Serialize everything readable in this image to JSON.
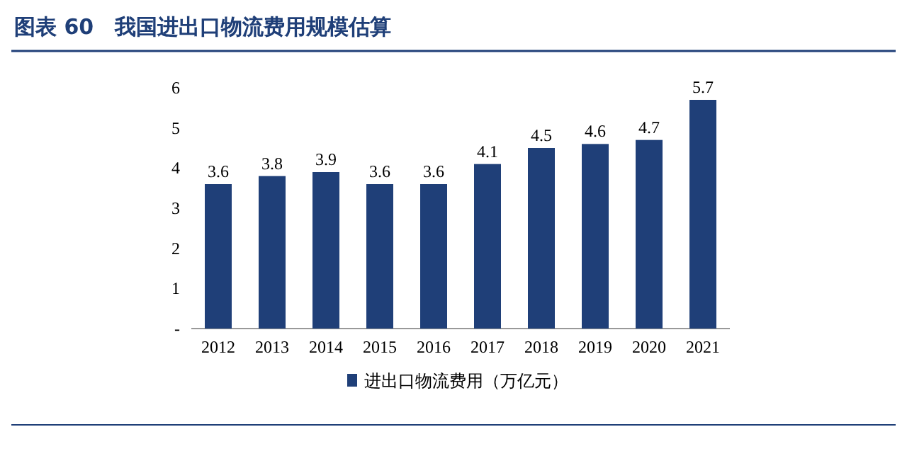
{
  "chart_data": {
    "type": "bar",
    "title": "图表 60　我国进出口物流费用规模估算",
    "categories": [
      "2012",
      "2013",
      "2014",
      "2015",
      "2016",
      "2017",
      "2018",
      "2019",
      "2020",
      "2021"
    ],
    "series": [
      {
        "name": "进出口物流费用（万亿元）",
        "color": "#1f3f78",
        "values": [
          3.6,
          3.8,
          3.9,
          3.6,
          3.6,
          4.1,
          4.5,
          4.6,
          4.7,
          5.7
        ]
      }
    ],
    "ylim": [
      0,
      6
    ],
    "yticks": [
      {
        "value": 0,
        "label": "-"
      },
      1,
      2,
      3,
      4,
      5,
      6
    ],
    "data_labels": true,
    "legend": "bottom",
    "grid": false
  }
}
